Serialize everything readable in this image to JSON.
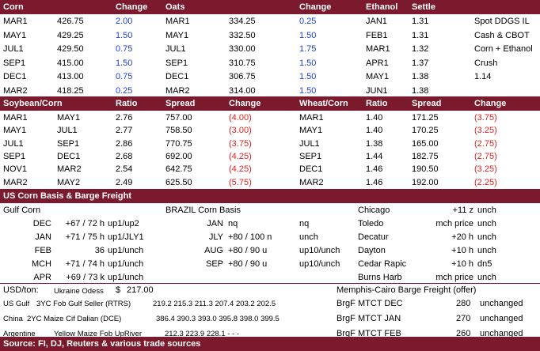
{
  "hdr1": [
    "Corn",
    "Change",
    "Oats",
    "Change",
    "Ethanol",
    "Settle"
  ],
  "corn": [
    [
      "MAR1",
      "426.75",
      "2.00"
    ],
    [
      "MAY1",
      "429.25",
      "1.50"
    ],
    [
      "JUL1",
      "429.50",
      "0.75"
    ],
    [
      "SEP1",
      "415.00",
      "1.50"
    ],
    [
      "DEC1",
      "413.00",
      "0.75"
    ],
    [
      "MAR2",
      "418.25",
      "0.25"
    ]
  ],
  "oats": [
    [
      "MAR1",
      "334.25",
      "0.25"
    ],
    [
      "MAY1",
      "332.50",
      "1.50"
    ],
    [
      "JUL1",
      "330.00",
      "1.75"
    ],
    [
      "SEP1",
      "310.75",
      "1.50"
    ],
    [
      "DEC1",
      "306.75",
      "1.50"
    ],
    [
      "MAR2",
      "314.00",
      "1.50"
    ]
  ],
  "ethanol": [
    [
      "JAN1",
      "1.31"
    ],
    [
      "FEB1",
      "1.31"
    ],
    [
      "MAR1",
      "1.32"
    ],
    [
      "APR1",
      "1.37"
    ],
    [
      "MAY1",
      "1.38"
    ],
    [
      "JUN1",
      "1.38"
    ]
  ],
  "ddgs": [
    "Spot DDGS IL",
    "Cash & CBOT",
    "Corn + Ethanol",
    "Crush",
    "1.14"
  ],
  "hdr2": [
    "Soybean/Corn",
    "Ratio",
    "Spread",
    "Change",
    "Wheat/Corn",
    "Ratio",
    "Spread",
    "Change"
  ],
  "soycorn": [
    [
      "MAR1",
      "MAY1",
      "2.76",
      "757.00",
      "(4.00)"
    ],
    [
      "MAY1",
      "JUL1",
      "2.77",
      "758.50",
      "(3.00)"
    ],
    [
      "JUL1",
      "SEP1",
      "2.86",
      "770.75",
      "(3.75)"
    ],
    [
      "SEP1",
      "DEC1",
      "2.68",
      "692.00",
      "(4.25)"
    ],
    [
      "NOV1",
      "MAR2",
      "2.54",
      "642.75",
      "(4.25)"
    ],
    [
      "MAR2",
      "MAY2",
      "2.49",
      "625.50",
      "(5.75)"
    ]
  ],
  "wheatcorn": [
    [
      "MAR1",
      "1.40",
      "171.25",
      "(3.75)"
    ],
    [
      "MAY1",
      "1.40",
      "170.25",
      "(3.25)"
    ],
    [
      "JUL1",
      "1.38",
      "165.00",
      "(2.75)"
    ],
    [
      "SEP1",
      "1.44",
      "182.75",
      "(2.75)"
    ],
    [
      "DEC1",
      "1.46",
      "190.50",
      "(3.25)"
    ],
    [
      "MAR2",
      "1.46",
      "192.00",
      "(2.25)"
    ]
  ],
  "basis_title": "US Corn Basis & Barge Freight",
  "gulf_title": "Gulf Corn",
  "gulf": [
    [
      "DEC",
      "+67 / 72 h",
      "up1/up2"
    ],
    [
      "JAN",
      "+71 / 75 h",
      "up1/JLY1"
    ],
    [
      "FEB",
      "36",
      "up1/unch"
    ],
    [
      "MCH",
      "+71 / 74 h",
      "up1/unch"
    ],
    [
      "APR",
      "+69 / 73 k",
      "up1/unch"
    ]
  ],
  "brazil_title": "BRAZIL Corn Basis",
  "brazil": [
    [
      "JAN",
      "nq",
      "nq"
    ],
    [
      "JLY",
      "+80 / 100 n",
      "unch"
    ],
    [
      "AUG",
      "+80 / 90 u",
      "up10/unch"
    ],
    [
      "SEP",
      "+80 / 90 u",
      "up10/unch"
    ]
  ],
  "interior": [
    [
      "Chicago",
      "+11 z",
      "unch"
    ],
    [
      "Toledo",
      "mch price",
      "unch"
    ],
    [
      "Decatur",
      "+20 h",
      "unch"
    ],
    [
      "Dayton",
      "+10 h",
      "unch"
    ],
    [
      "Cedar Rapic",
      "+10 h",
      "dn5"
    ],
    [
      "Burns Harb",
      "mch price",
      "unch"
    ]
  ],
  "usd_label": "USD/ton:",
  "odessa": [
    "Ukraine Odess",
    "$",
    "217.00"
  ],
  "memphis": "Memphis-Cairo Barge Freight (offer)",
  "exports": [
    [
      "US Gulf",
      "3YC Fob Gulf Seller (RTRS)",
      "219.2 215.3 211.3 207.4 203.2 202.5"
    ],
    [
      "China",
      "2YC Maize Cif Dalian (DCE)",
      "386.4 390.3 393.0 395.8 398.0 399.5"
    ],
    [
      "Argentine",
      "Yellow Maize Fob UpRiver",
      "212.3 223.9 228.1  -   -   -"
    ]
  ],
  "barge": [
    [
      "BrgF",
      "MTCT DEC",
      "280",
      "unchanged"
    ],
    [
      "BrgF",
      "MTCT JAN",
      "270",
      "unchanged"
    ],
    [
      "BrgF",
      "MTCT FEB",
      "260",
      "unchanged"
    ]
  ],
  "source": "Source: FI, DJ, Reuters & various trade sources"
}
